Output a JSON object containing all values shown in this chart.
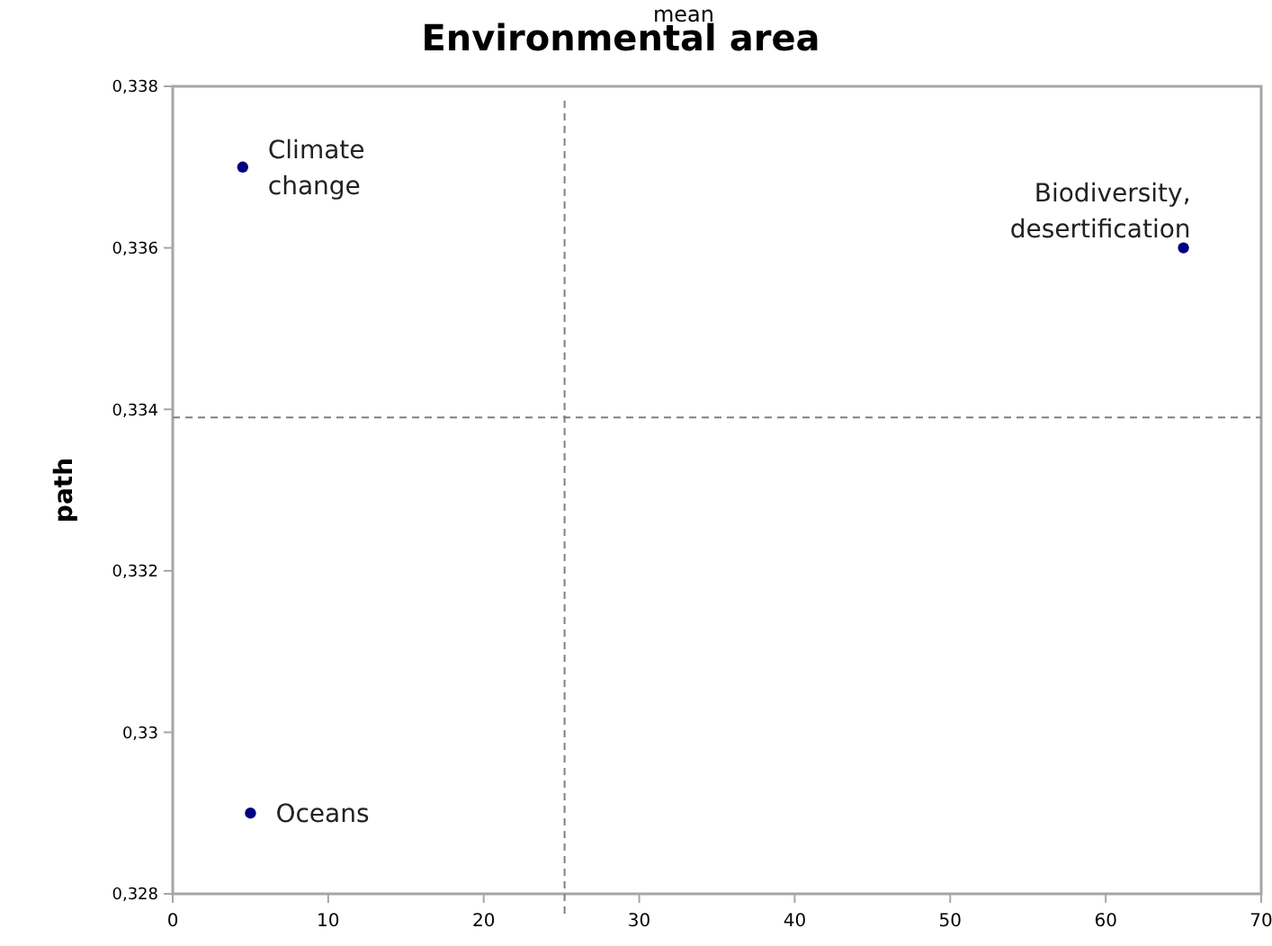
{
  "chart_data": {
    "type": "scatter",
    "title": "Environmental area",
    "ylabel": "path",
    "x": [
      4.5,
      65,
      5
    ],
    "values": [
      0.337,
      0.336,
      0.329
    ],
    "color": "#000080",
    "marker": "circle",
    "xlim": [
      0,
      70
    ],
    "xticks": [
      0,
      10,
      20,
      30,
      40,
      50,
      60,
      70
    ],
    "ylim": [
      0.328,
      0.338
    ],
    "yticks": [
      {
        "value": 0.328,
        "label": "0,328"
      },
      {
        "value": 0.33,
        "label": "0,33"
      },
      {
        "value": 0.332,
        "label": "0,332"
      },
      {
        "value": 0.334,
        "label": "0,334"
      },
      {
        "value": 0.336,
        "label": "0,336"
      },
      {
        "value": 0.338,
        "label": "0,338"
      }
    ],
    "grid": false,
    "ref_lines": [
      {
        "axis": "x",
        "value": 25.2,
        "color": "#808080",
        "line_style": "dashed"
      },
      {
        "axis": "y",
        "value": 0.3339,
        "color": "#808080",
        "line_style": "dashed"
      }
    ],
    "annotations": [
      "mean",
      {
        "text": "Climate change",
        "x": 4.5,
        "y": 0.337
      },
      {
        "text": "Biodiversity, desertification",
        "x": 65,
        "y": 0.336
      },
      {
        "text": "Oceans",
        "x": 5,
        "y": 0.329
      }
    ]
  }
}
